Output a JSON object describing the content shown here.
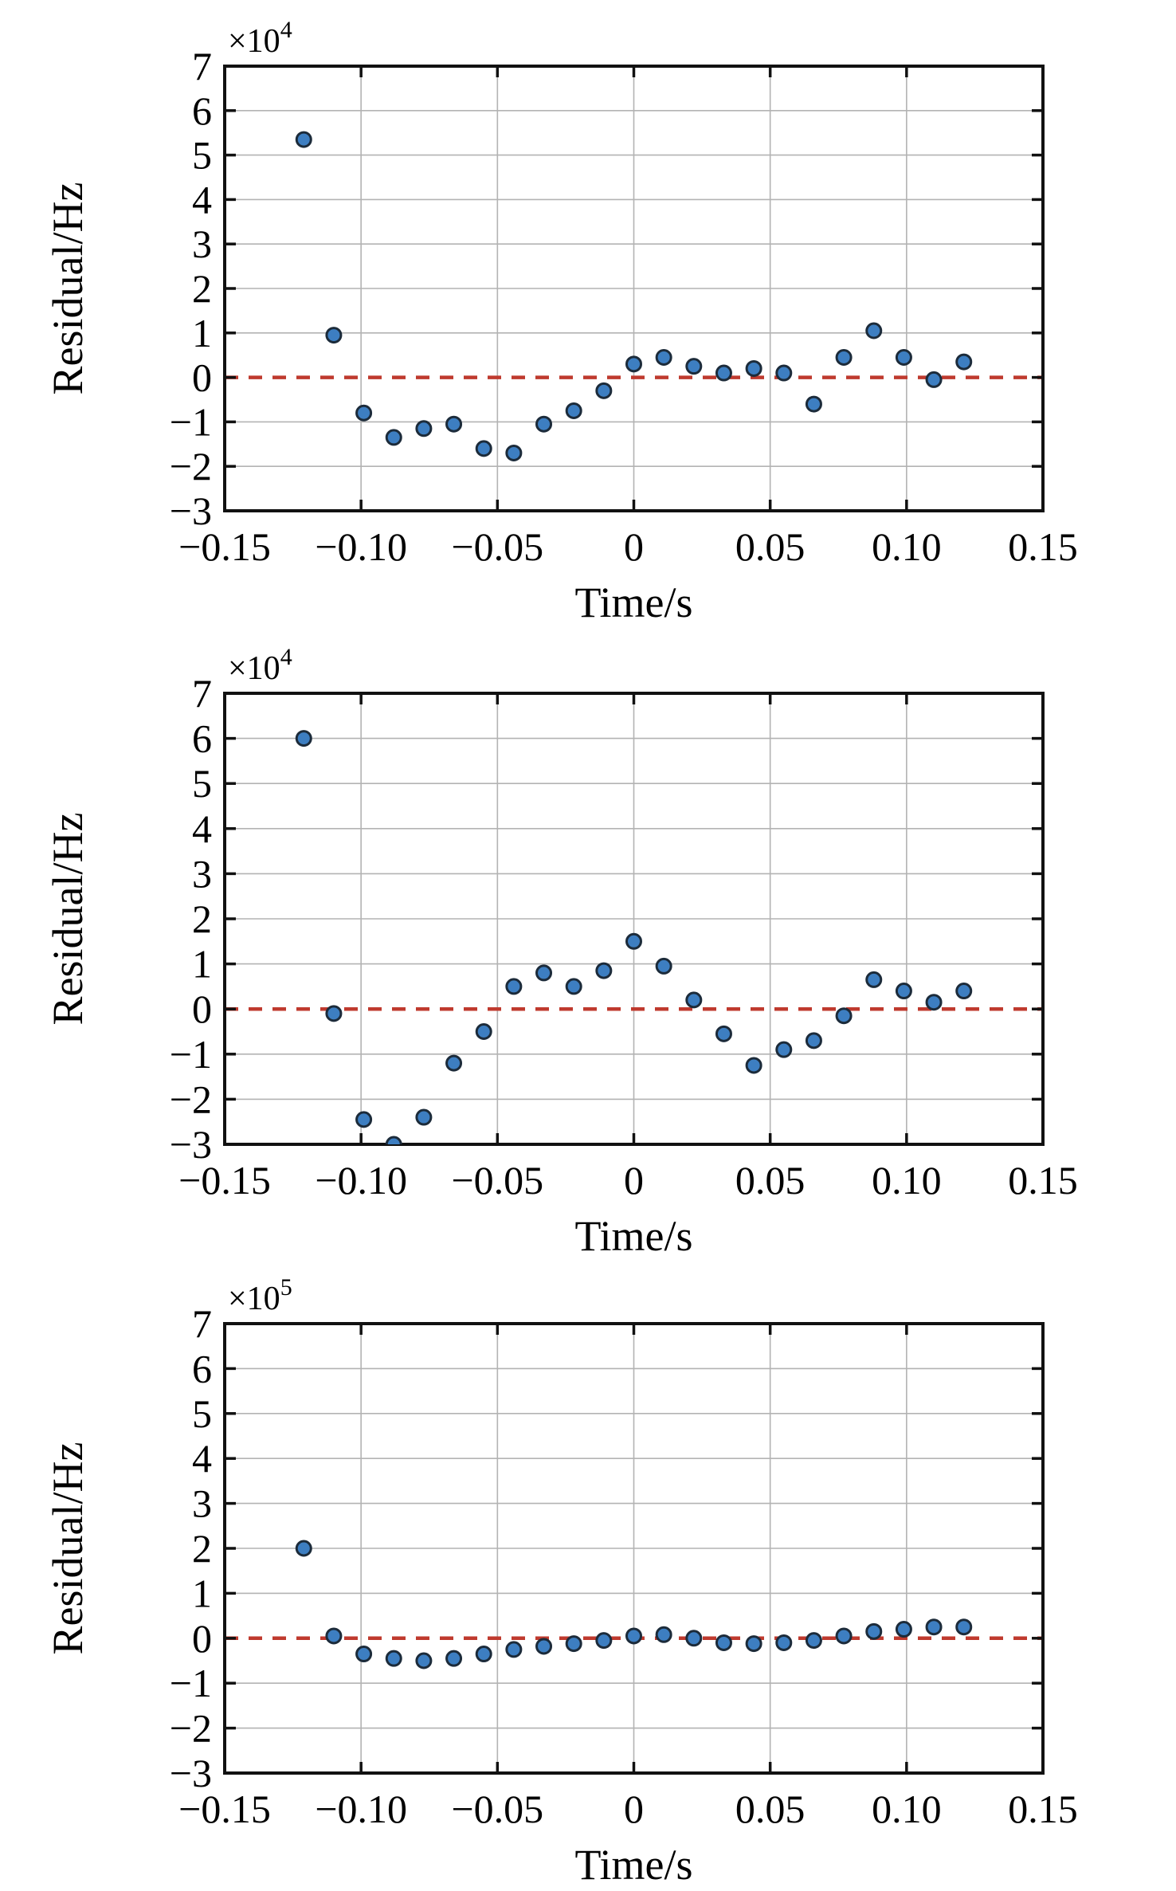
{
  "figure": {
    "background": "#ffffff",
    "description": "Three stacked scatter plots of residuals versus time with a red dashed zero line"
  },
  "colors": {
    "marker_fill": "#3d7ec1",
    "marker_edge": "#1c2b3a",
    "zero_line": "#bf3a2e",
    "grid": "#b3b3b3",
    "axis": "#111111",
    "text": "#000000"
  },
  "chart_data": [
    {
      "type": "scatter",
      "title": "",
      "xlabel": "Time/s",
      "ylabel": "Residual/Hz",
      "multiplier_base": "×10",
      "multiplier_exp": "4",
      "xlim": [
        -0.15,
        0.15
      ],
      "ylim": [
        -3,
        7
      ],
      "grid": true,
      "zero_line_style": "dashed",
      "xtick_values": [
        -0.15,
        -0.1,
        -0.05,
        0,
        0.05,
        0.1,
        0.15
      ],
      "xtick_labels": [
        "−0.15",
        "−0.10",
        "−0.05",
        "0",
        "0.05",
        "0.10",
        "0.15"
      ],
      "ytick_values": [
        7,
        6,
        5,
        4,
        3,
        2,
        1,
        0,
        -1,
        -2,
        -3
      ],
      "ytick_labels": [
        "7",
        "6",
        "5",
        "4",
        "3",
        "2",
        "1",
        "0",
        "−1",
        "−2",
        "−3"
      ],
      "x": [
        -0.121,
        -0.11,
        -0.099,
        -0.088,
        -0.077,
        -0.066,
        -0.055,
        -0.044,
        -0.033,
        -0.022,
        -0.011,
        0,
        0.011,
        0.022,
        0.033,
        0.044,
        0.055,
        0.066,
        0.077,
        0.088,
        0.099,
        0.11,
        0.121
      ],
      "y": [
        5.35,
        0.95,
        -0.8,
        -1.35,
        -1.15,
        -1.05,
        -1.6,
        -1.7,
        -1.05,
        -0.75,
        -0.3,
        0.3,
        0.45,
        0.25,
        0.1,
        0.2,
        0.1,
        -0.6,
        0.45,
        1.05,
        0.45,
        -0.05,
        0.35
      ]
    },
    {
      "type": "scatter",
      "title": "",
      "xlabel": "Time/s",
      "ylabel": "Residual/Hz",
      "multiplier_base": "×10",
      "multiplier_exp": "4",
      "xlim": [
        -0.15,
        0.15
      ],
      "ylim": [
        -3,
        7
      ],
      "grid": true,
      "zero_line_style": "dashed",
      "xtick_values": [
        -0.15,
        -0.1,
        -0.05,
        0,
        0.05,
        0.1,
        0.15
      ],
      "xtick_labels": [
        "−0.15",
        "−0.10",
        "−0.05",
        "0",
        "0.05",
        "0.10",
        "0.15"
      ],
      "ytick_values": [
        7,
        6,
        5,
        4,
        3,
        2,
        1,
        0,
        -1,
        -2,
        -3
      ],
      "ytick_labels": [
        "7",
        "6",
        "5",
        "4",
        "3",
        "2",
        "1",
        "0",
        "−1",
        "−2",
        "−3"
      ],
      "x": [
        -0.121,
        -0.11,
        -0.099,
        -0.088,
        -0.077,
        -0.066,
        -0.055,
        -0.044,
        -0.033,
        -0.022,
        -0.011,
        0,
        0.011,
        0.022,
        0.033,
        0.044,
        0.055,
        0.066,
        0.077,
        0.088,
        0.099,
        0.11,
        0.121
      ],
      "y": [
        6.0,
        -0.1,
        -2.45,
        -3.0,
        -2.4,
        -1.2,
        -0.5,
        0.5,
        0.8,
        0.5,
        0.85,
        1.5,
        0.95,
        0.2,
        -0.55,
        -1.25,
        -0.9,
        -0.7,
        -0.15,
        0.65,
        0.4,
        0.15,
        0.4
      ]
    },
    {
      "type": "scatter",
      "title": "",
      "xlabel": "Time/s",
      "ylabel": "Residual/Hz",
      "multiplier_base": "×10",
      "multiplier_exp": "5",
      "xlim": [
        -0.15,
        0.15
      ],
      "ylim": [
        -3,
        7
      ],
      "grid": true,
      "zero_line_style": "dashed",
      "xtick_values": [
        -0.15,
        -0.1,
        -0.05,
        0,
        0.05,
        0.1,
        0.15
      ],
      "xtick_labels": [
        "−0.15",
        "−0.10",
        "−0.05",
        "0",
        "0.05",
        "0.10",
        "0.15"
      ],
      "ytick_values": [
        7,
        6,
        5,
        4,
        3,
        2,
        1,
        0,
        -1,
        -2,
        -3
      ],
      "ytick_labels": [
        "7",
        "6",
        "5",
        "4",
        "3",
        "2",
        "1",
        "0",
        "−1",
        "−2",
        "−3"
      ],
      "x": [
        -0.121,
        -0.11,
        -0.099,
        -0.088,
        -0.077,
        -0.066,
        -0.055,
        -0.044,
        -0.033,
        -0.022,
        -0.011,
        0,
        0.011,
        0.022,
        0.033,
        0.044,
        0.055,
        0.066,
        0.077,
        0.088,
        0.099,
        0.11,
        0.121
      ],
      "y": [
        2.0,
        0.05,
        -0.35,
        -0.45,
        -0.5,
        -0.45,
        -0.35,
        -0.25,
        -0.18,
        -0.12,
        -0.05,
        0.05,
        0.08,
        0,
        -0.1,
        -0.12,
        -0.1,
        -0.05,
        0.05,
        0.15,
        0.2,
        0.25,
        0.25
      ]
    }
  ]
}
